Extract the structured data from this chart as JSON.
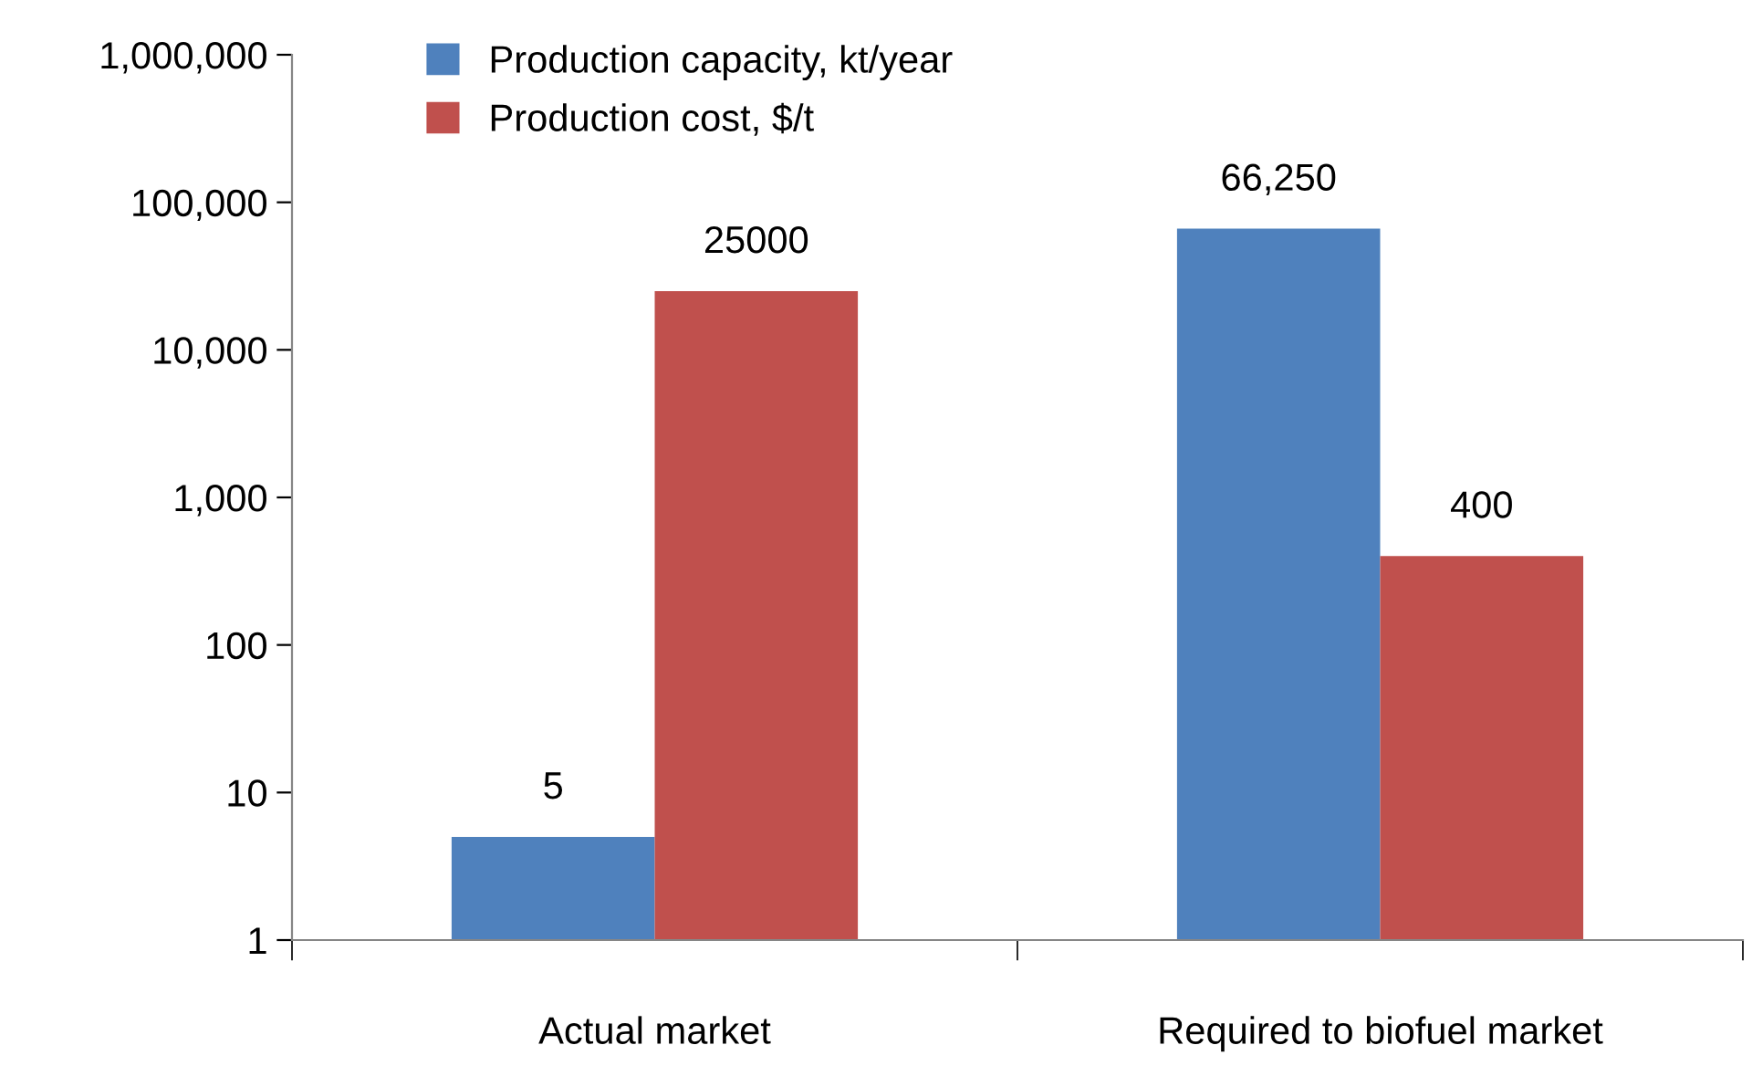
{
  "chart_data": {
    "type": "bar",
    "categories": [
      "Actual market",
      "Required to biofuel market"
    ],
    "series": [
      {
        "name": "Production capacity, kt/year",
        "color": "#4f81bd",
        "values": [
          5,
          66250
        ],
        "value_labels": [
          "5",
          "66,250"
        ]
      },
      {
        "name": "Production cost, $/t",
        "color": "#c0504d",
        "values": [
          25000,
          400
        ],
        "value_labels": [
          "25000",
          "400"
        ]
      }
    ],
    "log": "y",
    "ylim": [
      1,
      1000000
    ],
    "yticks": [
      1,
      10,
      100,
      {
        "value": 1000,
        "label": "1,000"
      },
      {
        "value": 10000,
        "label": "10,000"
      },
      {
        "value": 100000,
        "label": "100,000"
      },
      {
        "value": 1000000,
        "label": "1,000,000"
      }
    ],
    "grid": false,
    "legend": "top"
  }
}
